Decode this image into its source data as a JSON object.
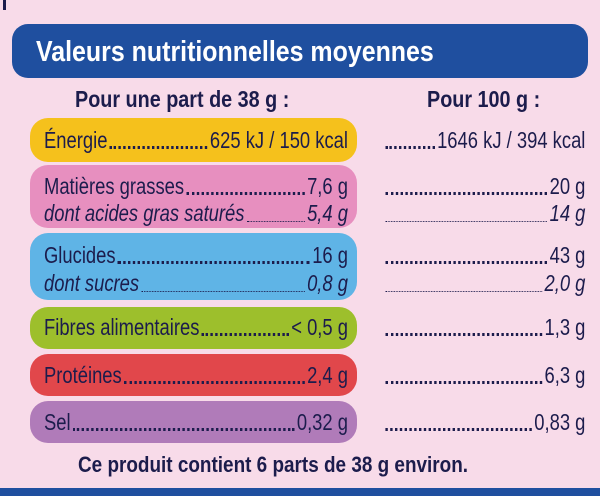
{
  "header": {
    "title": "Valeurs nutritionnelles moyennes"
  },
  "columns": {
    "per_portion": "Pour une part de 38 g :",
    "per_100g": "Pour 100 g :"
  },
  "rows": [
    {
      "label": "Énergie",
      "per_portion": "625 kJ / 150 kcal",
      "per_100g": "1646 kJ / 394 kcal"
    },
    {
      "label": "Matières grasses",
      "per_portion": "7,6 g",
      "per_100g": "20 g",
      "sub": {
        "label": "dont acides gras saturés",
        "per_portion": "5,4 g",
        "per_100g": "14 g"
      }
    },
    {
      "label": "Glucides",
      "per_portion": "16 g",
      "per_100g": "43 g",
      "sub": {
        "label": "dont sucres",
        "per_portion": "0,8 g",
        "per_100g": "2,0 g"
      }
    },
    {
      "label": "Fibres alimentaires",
      "per_portion": "< 0,5 g",
      "per_100g": "1,3 g"
    },
    {
      "label": "Protéines",
      "per_portion": "2,4 g",
      "per_100g": "6,3 g"
    },
    {
      "label": "Sel",
      "per_portion": "0,32 g",
      "per_100g": "0,83 g"
    }
  ],
  "footer": "Ce produit contient 6 parts de 38 g environ."
}
